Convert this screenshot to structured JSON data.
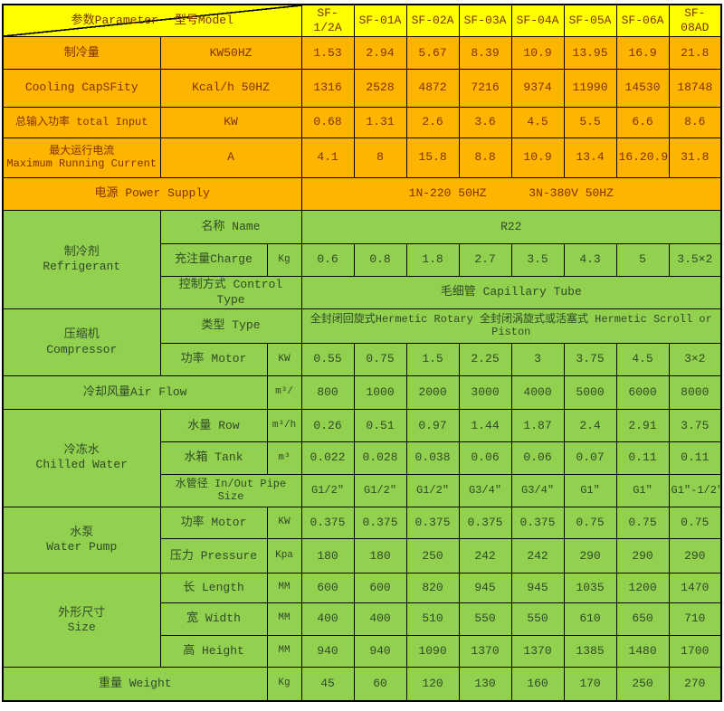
{
  "colors": {
    "yellow": "#FFFF00",
    "orange": "#FFB400",
    "green": "#92D04F",
    "orange_text": "#7E3200",
    "green_text": "#2F4A28",
    "border": "#000000"
  },
  "header": {
    "param_label": "参数Parameter",
    "model_label": "型号Model",
    "models": [
      "SF-1/2A",
      "SF-01A",
      "SF-02A",
      "SF-03A",
      "SF-04A",
      "SF-05A",
      "SF-06A",
      "SF-08AD"
    ]
  },
  "rows": [
    {
      "name": "header-row",
      "theme": "yellow",
      "h": 33,
      "cells": [
        {
          "diag": true,
          "cs": 3,
          "name": "param-model-header"
        },
        {
          "t": "SF-1/2A",
          "name": "model-header"
        },
        {
          "t": "SF-01A",
          "name": "model-header"
        },
        {
          "t": "SF-02A",
          "name": "model-header"
        },
        {
          "t": "SF-03A",
          "name": "model-header"
        },
        {
          "t": "SF-04A",
          "name": "model-header"
        },
        {
          "t": "SF-05A",
          "name": "model-header"
        },
        {
          "t": "SF-06A",
          "name": "model-header"
        },
        {
          "t": "SF-08AD",
          "name": "model-header"
        }
      ]
    },
    {
      "name": "row-cooling-capacity-kw",
      "theme": "orange",
      "h": 34,
      "cells": [
        {
          "t": "制冷量",
          "name": "row-label"
        },
        {
          "t": "KW50HZ",
          "cs": 2,
          "name": "unit-label"
        },
        {
          "t": "1.53"
        },
        {
          "t": "2.94"
        },
        {
          "t": "5.67"
        },
        {
          "t": "8.39"
        },
        {
          "t": "10.9"
        },
        {
          "t": "13.95"
        },
        {
          "t": "16.9"
        },
        {
          "t": "21.8"
        }
      ]
    },
    {
      "name": "row-cooling-capacity-kcal",
      "theme": "orange",
      "h": 40,
      "cells": [
        {
          "t": "Cooling CapSFity",
          "name": "row-label"
        },
        {
          "t": "Kcal/h 50HZ",
          "cs": 2,
          "name": "unit-label"
        },
        {
          "t": "1316"
        },
        {
          "t": "2528"
        },
        {
          "t": "4872"
        },
        {
          "t": "7216"
        },
        {
          "t": "9374"
        },
        {
          "t": "11990"
        },
        {
          "t": "14530"
        },
        {
          "t": "18748"
        }
      ]
    },
    {
      "name": "row-total-input",
      "theme": "orange",
      "h": 32,
      "cells": [
        {
          "t": "总输入功率 total Input",
          "name": "row-label",
          "cls": "sm"
        },
        {
          "t": "KW",
          "cs": 2,
          "name": "unit-label"
        },
        {
          "t": "0.68"
        },
        {
          "t": "1.31"
        },
        {
          "t": "2.6"
        },
        {
          "t": "3.6"
        },
        {
          "t": "4.5"
        },
        {
          "t": "5.5"
        },
        {
          "t": "6.6"
        },
        {
          "t": "8.6"
        }
      ]
    },
    {
      "name": "row-max-running-current",
      "theme": "orange",
      "h": 42,
      "cells": [
        {
          "t": "最大运行电流\nMaximum Running Current",
          "name": "row-label",
          "cls": "sm"
        },
        {
          "t": "A",
          "cs": 2,
          "name": "unit-label"
        },
        {
          "t": "4.1"
        },
        {
          "t": "8"
        },
        {
          "t": "15.8"
        },
        {
          "t": "8.8"
        },
        {
          "t": "10.9"
        },
        {
          "t": "13.4"
        },
        {
          "t": "16.20.9"
        },
        {
          "t": "31.8"
        }
      ]
    },
    {
      "name": "row-power-supply",
      "theme": "orange",
      "h": 34,
      "cells": [
        {
          "t": "电源 Power Supply",
          "cs": 3,
          "name": "row-label"
        },
        {
          "t": "1N-220 50HZ      3N-380V 50HZ",
          "cs": 8,
          "name": "merged-value"
        }
      ]
    },
    {
      "name": "row-refrigerant-name",
      "theme": "green",
      "h": 35,
      "cells": [
        {
          "t": "制冷剂\nRefrigerant",
          "rs": 3,
          "name": "group-label"
        },
        {
          "t": "名称 Name",
          "cs": 2,
          "name": "row-label"
        },
        {
          "t": "R22",
          "cs": 8,
          "name": "merged-value"
        }
      ]
    },
    {
      "name": "row-refrigerant-charge",
      "theme": "green",
      "h": 35,
      "cells": [
        {
          "t": "充注量Charge",
          "name": "row-label"
        },
        {
          "t": "Kg",
          "cls": "unit",
          "name": "unit-label"
        },
        {
          "t": "0.6"
        },
        {
          "t": "0.8"
        },
        {
          "t": "1.8"
        },
        {
          "t": "2.7"
        },
        {
          "t": "3.5"
        },
        {
          "t": "4.3"
        },
        {
          "t": "5"
        },
        {
          "t": "3.5×2"
        }
      ]
    },
    {
      "name": "row-refrigerant-control",
      "theme": "green",
      "h": 33,
      "cells": [
        {
          "t": "控制方式 Control Type",
          "cs": 2,
          "name": "row-label"
        },
        {
          "t": "毛细管 Capillary Tube",
          "cs": 8,
          "name": "merged-value"
        }
      ]
    },
    {
      "name": "row-compressor-type",
      "theme": "green",
      "h": 36,
      "cells": [
        {
          "t": "压缩机\nCompressor",
          "rs": 2,
          "name": "group-label"
        },
        {
          "t": "类型 Type",
          "cs": 2,
          "name": "row-label"
        },
        {
          "t": "全封闭回旋式Hermetic Rotary 全封闭涡旋式或活塞式 Hermetic Scroll or Piston",
          "cs": 8,
          "cls": "sm",
          "name": "merged-value"
        }
      ]
    },
    {
      "name": "row-compressor-motor",
      "theme": "green",
      "h": 35,
      "cells": [
        {
          "t": "功率 Motor",
          "name": "row-label"
        },
        {
          "t": "KW",
          "cls": "unit",
          "name": "unit-label"
        },
        {
          "t": "0.55"
        },
        {
          "t": "0.75"
        },
        {
          "t": "1.5"
        },
        {
          "t": "2.25"
        },
        {
          "t": "3"
        },
        {
          "t": "3.75"
        },
        {
          "t": "4.5"
        },
        {
          "t": "3×2"
        }
      ]
    },
    {
      "name": "row-air-flow",
      "theme": "green",
      "h": 35,
      "cells": [
        {
          "t": "冷却风量Air Flow",
          "cs": 2,
          "name": "row-label"
        },
        {
          "t": "m³/",
          "cls": "unit",
          "name": "unit-label"
        },
        {
          "t": "800"
        },
        {
          "t": "1000"
        },
        {
          "t": "2000"
        },
        {
          "t": "3000"
        },
        {
          "t": "4000"
        },
        {
          "t": "5000"
        },
        {
          "t": "6000"
        },
        {
          "t": "8000"
        }
      ]
    },
    {
      "name": "row-water-flow",
      "theme": "green",
      "h": 34,
      "cells": [
        {
          "t": "冷冻水\nChilled Water",
          "rs": 3,
          "name": "group-label"
        },
        {
          "t": "水量 Row",
          "name": "row-label"
        },
        {
          "t": "m³/h",
          "cls": "unit",
          "name": "unit-label"
        },
        {
          "t": "0.26"
        },
        {
          "t": "0.51"
        },
        {
          "t": "0.97"
        },
        {
          "t": "1.44"
        },
        {
          "t": "1.87"
        },
        {
          "t": "2.4"
        },
        {
          "t": "2.91"
        },
        {
          "t": "3.75"
        }
      ]
    },
    {
      "name": "row-water-tank",
      "theme": "green",
      "h": 34,
      "cells": [
        {
          "t": "水箱 Tank",
          "name": "row-label"
        },
        {
          "t": "m³",
          "cls": "unit",
          "name": "unit-label"
        },
        {
          "t": "0.022"
        },
        {
          "t": "0.028"
        },
        {
          "t": "0.038"
        },
        {
          "t": "0.06"
        },
        {
          "t": "0.06"
        },
        {
          "t": "0.07"
        },
        {
          "t": "0.11"
        },
        {
          "t": "0.11"
        }
      ]
    },
    {
      "name": "row-pipe-size",
      "theme": "green",
      "h": 34,
      "cells": [
        {
          "t": "水管径 In/Out Pipe Size",
          "cs": 2,
          "cls": "sm",
          "name": "row-label"
        },
        {
          "t": "G1/2″",
          "cls": "sm"
        },
        {
          "t": "G1/2″",
          "cls": "sm"
        },
        {
          "t": "G1/2″",
          "cls": "sm"
        },
        {
          "t": "G3/4″",
          "cls": "sm"
        },
        {
          "t": "G3/4″",
          "cls": "sm"
        },
        {
          "t": "G1″",
          "cls": "sm"
        },
        {
          "t": "G1″",
          "cls": "sm"
        },
        {
          "t": "G1″-1/2″",
          "cls": "sm"
        }
      ]
    },
    {
      "name": "row-pump-motor",
      "theme": "green",
      "h": 34,
      "cells": [
        {
          "t": "水泵\nWater Pump",
          "rs": 2,
          "name": "group-label"
        },
        {
          "t": "功率 Motor",
          "name": "row-label"
        },
        {
          "t": "KW",
          "cls": "unit",
          "name": "unit-label"
        },
        {
          "t": "0.375"
        },
        {
          "t": "0.375"
        },
        {
          "t": "0.375"
        },
        {
          "t": "0.375"
        },
        {
          "t": "0.375"
        },
        {
          "t": "0.75"
        },
        {
          "t": "0.75"
        },
        {
          "t": "0.75"
        }
      ]
    },
    {
      "name": "row-pump-pressure",
      "theme": "green",
      "h": 36,
      "cells": [
        {
          "t": "压力 Pressure",
          "name": "row-label"
        },
        {
          "t": "Kpa",
          "cls": "unit",
          "name": "unit-label"
        },
        {
          "t": "180"
        },
        {
          "t": "180"
        },
        {
          "t": "250"
        },
        {
          "t": "242"
        },
        {
          "t": "242"
        },
        {
          "t": "290"
        },
        {
          "t": "290"
        },
        {
          "t": "290"
        }
      ]
    },
    {
      "name": "row-size-length",
      "theme": "green",
      "h": 31,
      "cells": [
        {
          "t": "外形尺寸\nSize",
          "rs": 3,
          "name": "group-label"
        },
        {
          "t": "长 Length",
          "name": "row-label"
        },
        {
          "t": "MM",
          "cls": "unit",
          "name": "unit-label"
        },
        {
          "t": "600"
        },
        {
          "t": "600"
        },
        {
          "t": "820"
        },
        {
          "t": "945"
        },
        {
          "t": "945"
        },
        {
          "t": "1035"
        },
        {
          "t": "1200"
        },
        {
          "t": "1470"
        }
      ]
    },
    {
      "name": "row-size-width",
      "theme": "green",
      "h": 34,
      "cells": [
        {
          "t": "宽 Width",
          "name": "row-label"
        },
        {
          "t": "MM",
          "cls": "unit",
          "name": "unit-label"
        },
        {
          "t": "400"
        },
        {
          "t": "400"
        },
        {
          "t": "510"
        },
        {
          "t": "550"
        },
        {
          "t": "550"
        },
        {
          "t": "610"
        },
        {
          "t": "650"
        },
        {
          "t": "710"
        }
      ]
    },
    {
      "name": "row-size-height",
      "theme": "green",
      "h": 34,
      "cells": [
        {
          "t": "高 Height",
          "name": "row-label"
        },
        {
          "t": "MM",
          "cls": "unit",
          "name": "unit-label"
        },
        {
          "t": "940"
        },
        {
          "t": "940"
        },
        {
          "t": "1090"
        },
        {
          "t": "1370"
        },
        {
          "t": "1370"
        },
        {
          "t": "1385"
        },
        {
          "t": "1480"
        },
        {
          "t": "1700"
        }
      ]
    },
    {
      "name": "row-weight",
      "theme": "green",
      "h": 35,
      "cells": [
        {
          "t": "重量 Weight",
          "cs": 2,
          "name": "row-label"
        },
        {
          "t": "Kg",
          "cls": "unit",
          "name": "unit-label"
        },
        {
          "t": "45"
        },
        {
          "t": "60"
        },
        {
          "t": "120"
        },
        {
          "t": "130"
        },
        {
          "t": "160"
        },
        {
          "t": "170"
        },
        {
          "t": "250"
        },
        {
          "t": "270"
        }
      ]
    }
  ]
}
